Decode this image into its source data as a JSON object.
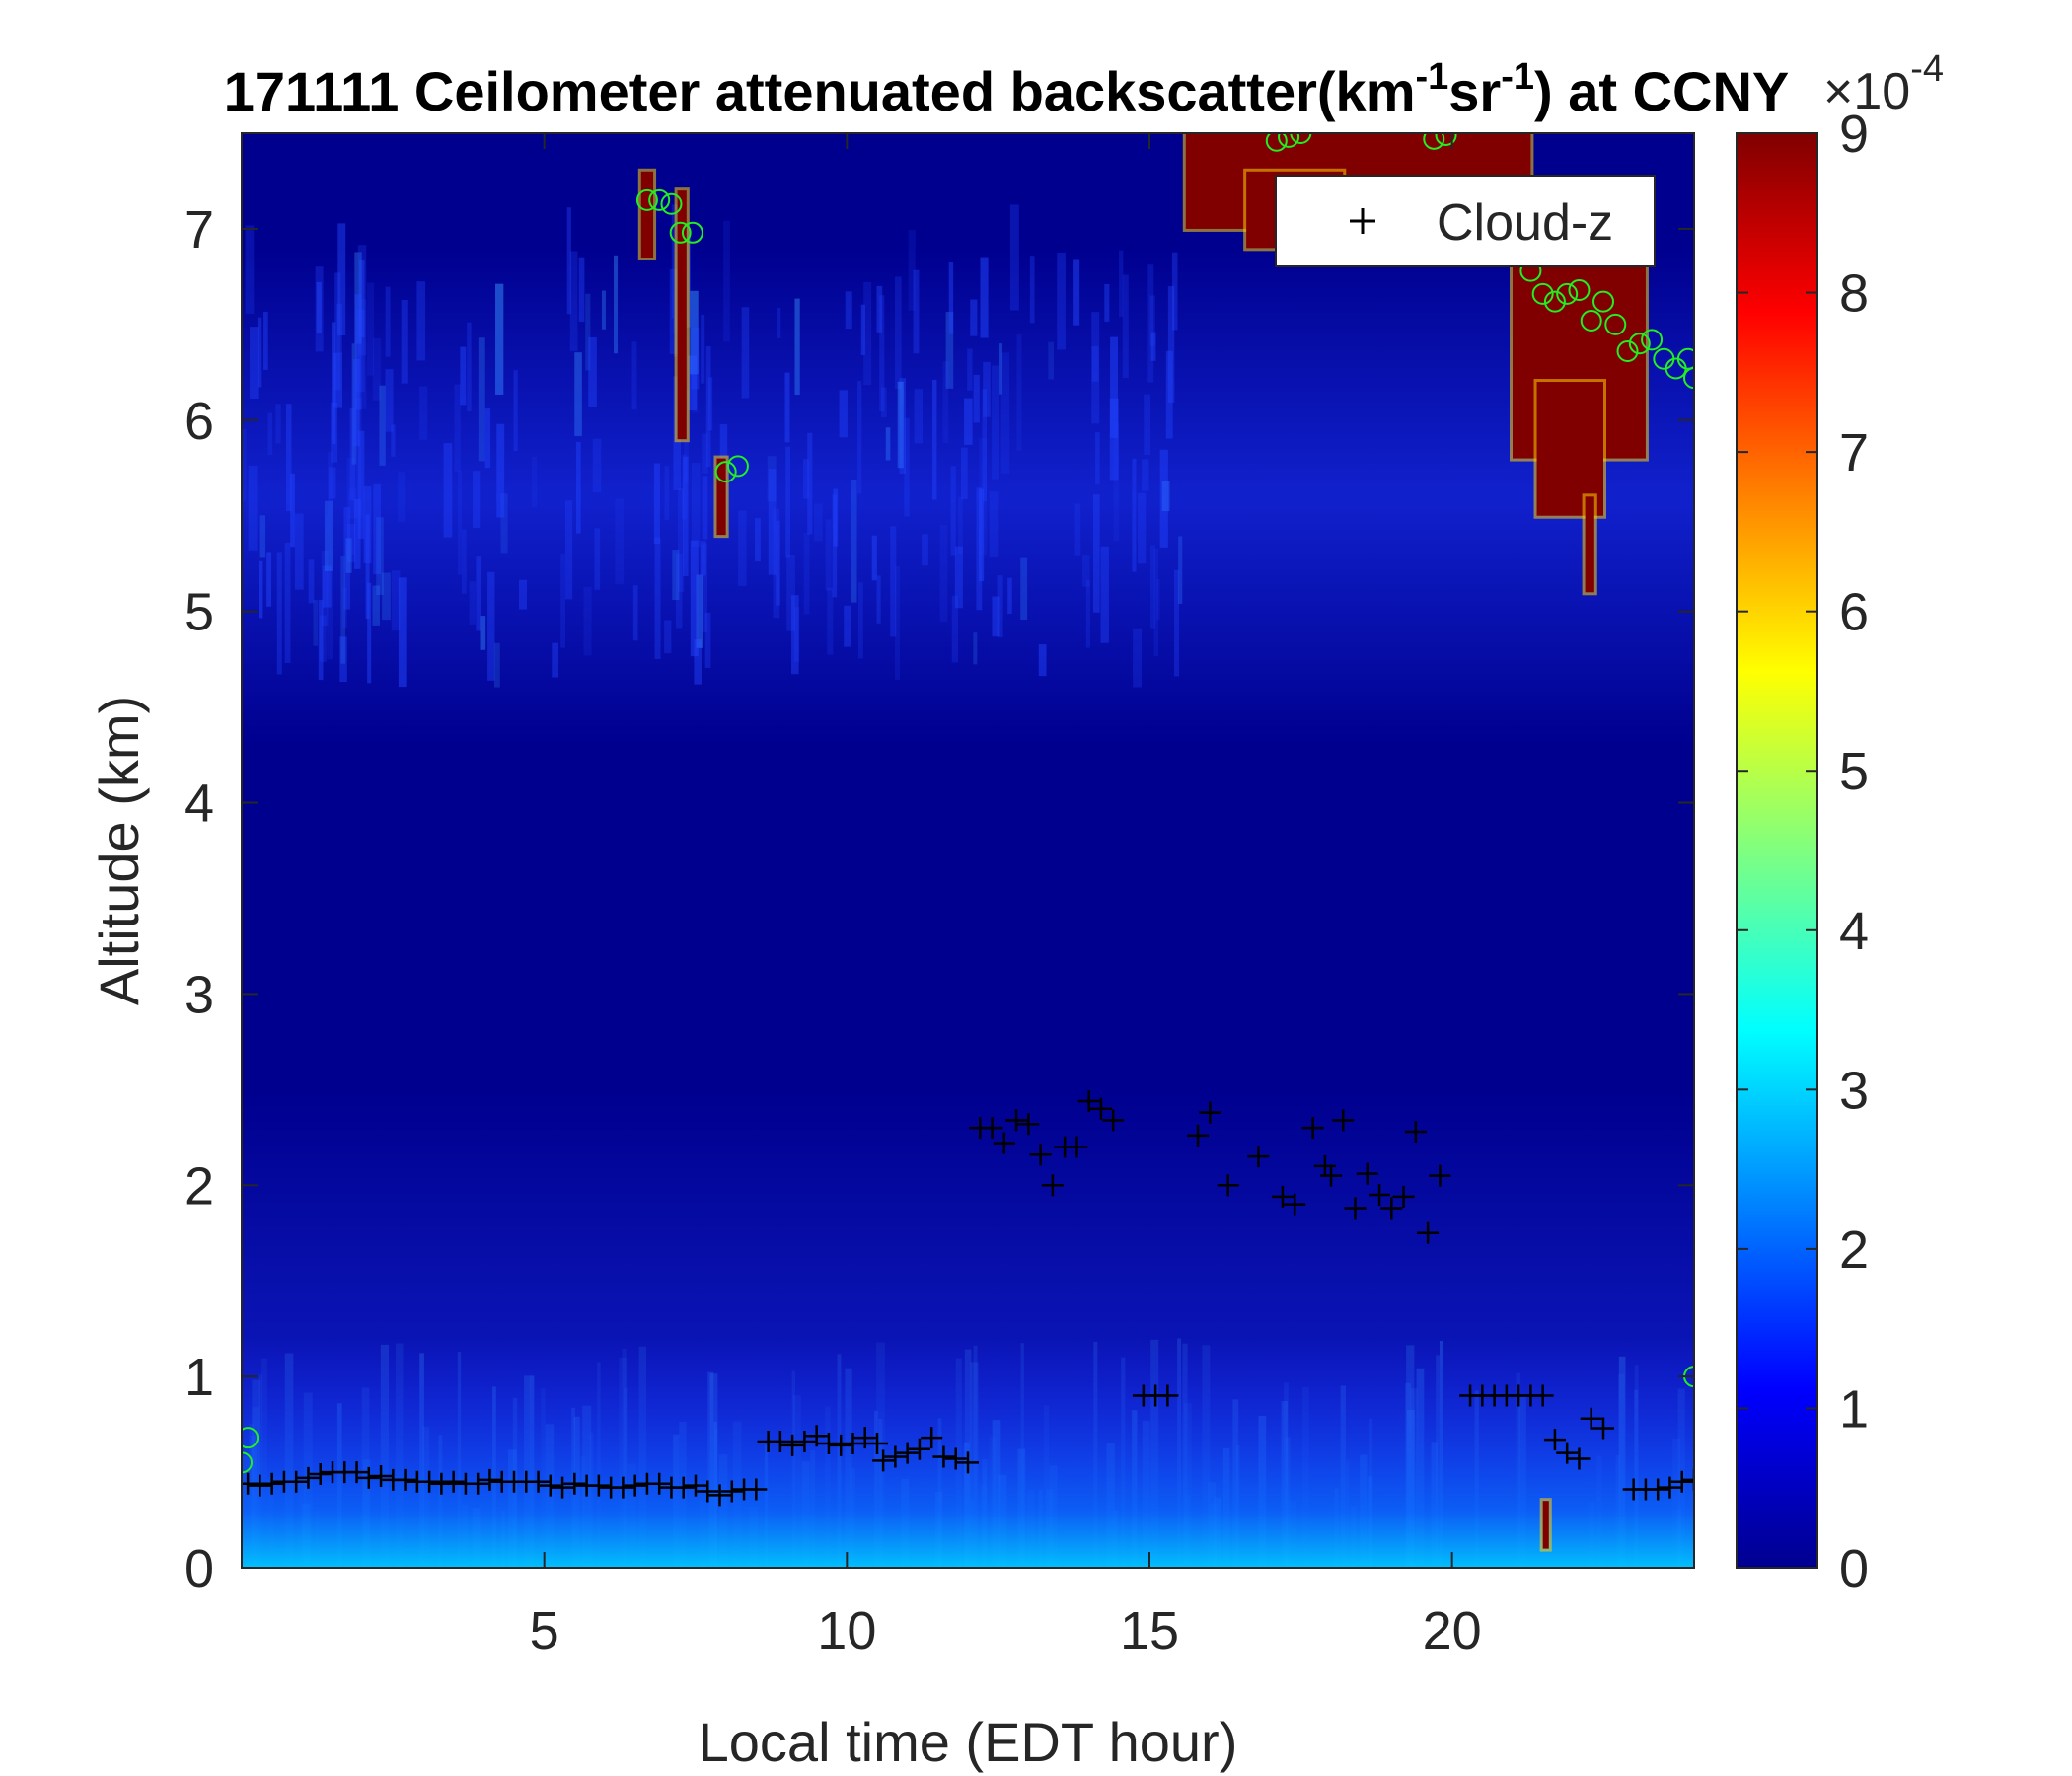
{
  "chart_data": {
    "type": "heatmap",
    "title": {
      "prefix": "171111 Ceilometer attenuated backscatter(km",
      "sup1": "-1",
      "mid": "sr",
      "sup2": "-1",
      "suffix": ") at CCNY"
    },
    "xlabel": "Local time (EDT hour)",
    "ylabel": "Altitude (km)",
    "xlim": [
      0,
      24
    ],
    "ylim": [
      0,
      7.5
    ],
    "xticks": [
      "5",
      "10",
      "15",
      "20"
    ],
    "xtick_values": [
      5,
      10,
      15,
      20
    ],
    "yticks": [
      "0",
      "1",
      "2",
      "3",
      "4",
      "5",
      "6",
      "7"
    ],
    "ytick_values": [
      0,
      1,
      2,
      3,
      4,
      5,
      6,
      7
    ],
    "colorbar": {
      "colormap": "jet",
      "range": [
        0,
        9
      ],
      "ticks": [
        "0",
        "1",
        "2",
        "3",
        "4",
        "5",
        "6",
        "7",
        "8",
        "9"
      ],
      "tick_values": [
        0,
        1,
        2,
        3,
        4,
        5,
        6,
        7,
        8,
        9
      ],
      "exponent_base": "×10",
      "exponent_power": "-4"
    },
    "legend": {
      "position": "top-right",
      "entries": [
        {
          "name": "Cloud-z",
          "marker": "+",
          "color": "#000000"
        }
      ]
    },
    "background_color": "#00008f",
    "saturated_regions": [
      {
        "x0": 6.6,
        "x1": 6.8,
        "y0": 6.85,
        "y1": 7.3
      },
      {
        "x0": 7.2,
        "x1": 7.35,
        "y0": 5.9,
        "y1": 7.2
      },
      {
        "x0": 7.85,
        "x1": 8.0,
        "y0": 5.4,
        "y1": 5.8
      },
      {
        "x0": 15.6,
        "x1": 21.3,
        "y0": 7.0,
        "y1": 7.5
      },
      {
        "x0": 16.6,
        "x1": 18.2,
        "y0": 6.9,
        "y1": 7.3
      },
      {
        "x0": 21.0,
        "x1": 23.2,
        "y0": 5.8,
        "y1": 6.95
      },
      {
        "x0": 21.4,
        "x1": 22.5,
        "y0": 5.5,
        "y1": 6.2
      },
      {
        "x0": 22.2,
        "x1": 22.35,
        "y0": 5.1,
        "y1": 5.6
      },
      {
        "x0": 21.5,
        "x1": 21.6,
        "y0": 0.1,
        "y1": 0.35
      }
    ],
    "cloud_z_points": [
      [
        0.1,
        0.44
      ],
      [
        0.3,
        0.43
      ],
      [
        0.5,
        0.44
      ],
      [
        0.7,
        0.45
      ],
      [
        0.9,
        0.45
      ],
      [
        1.1,
        0.47
      ],
      [
        1.3,
        0.49
      ],
      [
        1.5,
        0.5
      ],
      [
        1.7,
        0.5
      ],
      [
        1.9,
        0.5
      ],
      [
        2.1,
        0.47
      ],
      [
        2.3,
        0.48
      ],
      [
        2.5,
        0.46
      ],
      [
        2.7,
        0.46
      ],
      [
        2.9,
        0.45
      ],
      [
        3.1,
        0.45
      ],
      [
        3.3,
        0.44
      ],
      [
        3.5,
        0.45
      ],
      [
        3.7,
        0.44
      ],
      [
        3.9,
        0.44
      ],
      [
        4.1,
        0.46
      ],
      [
        4.3,
        0.45
      ],
      [
        4.5,
        0.45
      ],
      [
        4.7,
        0.45
      ],
      [
        4.9,
        0.45
      ],
      [
        5.1,
        0.43
      ],
      [
        5.3,
        0.42
      ],
      [
        5.5,
        0.44
      ],
      [
        5.7,
        0.43
      ],
      [
        5.9,
        0.43
      ],
      [
        6.1,
        0.42
      ],
      [
        6.3,
        0.42
      ],
      [
        6.5,
        0.43
      ],
      [
        6.7,
        0.44
      ],
      [
        6.9,
        0.44
      ],
      [
        7.1,
        0.42
      ],
      [
        7.3,
        0.42
      ],
      [
        7.5,
        0.43
      ],
      [
        7.7,
        0.4
      ],
      [
        7.9,
        0.38
      ],
      [
        8.1,
        0.4
      ],
      [
        8.3,
        0.41
      ],
      [
        8.5,
        0.41
      ],
      [
        8.7,
        0.66
      ],
      [
        8.9,
        0.66
      ],
      [
        9.1,
        0.64
      ],
      [
        9.3,
        0.66
      ],
      [
        9.5,
        0.69
      ],
      [
        9.7,
        0.65
      ],
      [
        9.9,
        0.64
      ],
      [
        10.1,
        0.65
      ],
      [
        10.3,
        0.68
      ],
      [
        10.5,
        0.65
      ],
      [
        10.6,
        0.56
      ],
      [
        10.8,
        0.58
      ],
      [
        11.0,
        0.6
      ],
      [
        11.2,
        0.62
      ],
      [
        11.4,
        0.68
      ],
      [
        11.6,
        0.58
      ],
      [
        11.8,
        0.57
      ],
      [
        12.0,
        0.55
      ],
      [
        12.2,
        2.3
      ],
      [
        12.4,
        2.3
      ],
      [
        12.6,
        2.22
      ],
      [
        12.8,
        2.34
      ],
      [
        13.0,
        2.32
      ],
      [
        13.2,
        2.16
      ],
      [
        13.4,
        2.0
      ],
      [
        13.6,
        2.2
      ],
      [
        13.8,
        2.2
      ],
      [
        14.0,
        2.44
      ],
      [
        14.2,
        2.4
      ],
      [
        14.4,
        2.34
      ],
      [
        14.9,
        0.9
      ],
      [
        15.1,
        0.9
      ],
      [
        15.3,
        0.9
      ],
      [
        15.8,
        2.26
      ],
      [
        16.0,
        2.38
      ],
      [
        16.3,
        2.0
      ],
      [
        16.8,
        2.15
      ],
      [
        17.2,
        1.94
      ],
      [
        17.4,
        1.9
      ],
      [
        17.7,
        2.3
      ],
      [
        17.9,
        2.1
      ],
      [
        18.0,
        2.05
      ],
      [
        18.2,
        2.34
      ],
      [
        18.4,
        1.88
      ],
      [
        18.6,
        2.06
      ],
      [
        18.8,
        1.95
      ],
      [
        19.0,
        1.88
      ],
      [
        19.2,
        1.94
      ],
      [
        19.4,
        2.28
      ],
      [
        19.6,
        1.75
      ],
      [
        19.8,
        2.05
      ],
      [
        20.3,
        0.9
      ],
      [
        20.5,
        0.9
      ],
      [
        20.7,
        0.9
      ],
      [
        20.9,
        0.9
      ],
      [
        21.1,
        0.9
      ],
      [
        21.3,
        0.9
      ],
      [
        21.5,
        0.9
      ],
      [
        21.7,
        0.67
      ],
      [
        21.9,
        0.6
      ],
      [
        22.1,
        0.57
      ],
      [
        22.3,
        0.78
      ],
      [
        22.5,
        0.73
      ],
      [
        23.0,
        0.41
      ],
      [
        23.2,
        0.41
      ],
      [
        23.4,
        0.41
      ],
      [
        23.6,
        0.42
      ],
      [
        23.8,
        0.45
      ],
      [
        24.0,
        0.46
      ]
    ],
    "cloud_top_points": [
      [
        6.7,
        7.15
      ],
      [
        6.9,
        7.15
      ],
      [
        7.1,
        7.13
      ],
      [
        7.25,
        6.98
      ],
      [
        7.45,
        6.98
      ],
      [
        8.0,
        5.73
      ],
      [
        8.2,
        5.76
      ],
      [
        17.1,
        7.46
      ],
      [
        17.3,
        7.48
      ],
      [
        17.5,
        7.5
      ],
      [
        19.7,
        7.47
      ],
      [
        19.9,
        7.49
      ],
      [
        21.3,
        6.78
      ],
      [
        21.5,
        6.66
      ],
      [
        21.7,
        6.62
      ],
      [
        21.9,
        6.66
      ],
      [
        22.1,
        6.68
      ],
      [
        22.3,
        6.52
      ],
      [
        22.5,
        6.62
      ],
      [
        22.7,
        6.5
      ],
      [
        22.9,
        6.36
      ],
      [
        23.1,
        6.4
      ],
      [
        23.3,
        6.42
      ],
      [
        23.5,
        6.32
      ],
      [
        23.7,
        6.27
      ],
      [
        23.9,
        6.32
      ],
      [
        24.0,
        6.22
      ],
      [
        0.0,
        0.55
      ],
      [
        0.1,
        0.68
      ],
      [
        24.0,
        1.0
      ]
    ]
  }
}
